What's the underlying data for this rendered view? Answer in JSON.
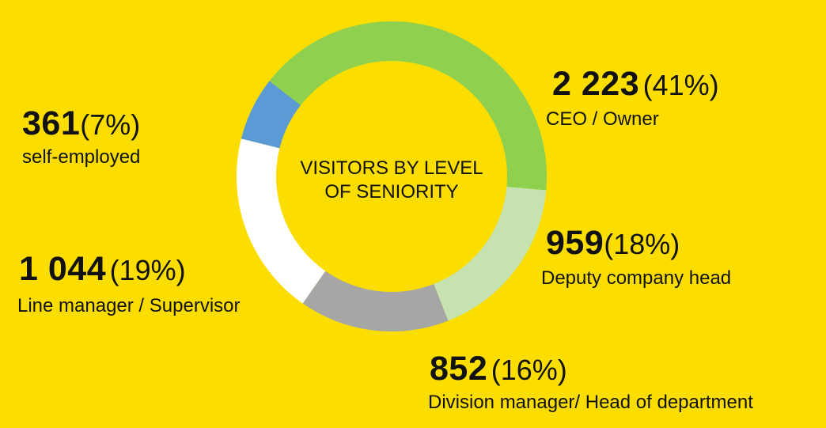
{
  "chart_data": {
    "type": "pie",
    "title": "VISITORS BY LEVEL OF SENIORITY",
    "title_lines": [
      "VISITORS BY LEVEL",
      "OF SENIORITY"
    ],
    "unit": "visitors",
    "slices": [
      {
        "label": "CEO / Owner",
        "value": 2223,
        "value_text": "2 223",
        "percent_text": "(41%)",
        "color": "#8FD14F"
      },
      {
        "label": "Deputy company head",
        "value": 959,
        "value_text": "959",
        "percent_text": "(18%)",
        "color": "#C6E2B0"
      },
      {
        "label": "Division manager/ Head of department",
        "value": 852,
        "value_text": "852",
        "percent_text": "(16%)",
        "color": "#A6A6A6"
      },
      {
        "label": "Line manager / Supervisor",
        "value": 1044,
        "value_text": "1 044",
        "percent_text": "(19%)",
        "color": "#FFFFFF"
      },
      {
        "label": "self-employed",
        "value": 361,
        "value_text": "361",
        "percent_text": "(7%)",
        "color": "#5B9BD5"
      }
    ]
  },
  "colors": {
    "background": "#FBDD00",
    "text": "#111111"
  }
}
